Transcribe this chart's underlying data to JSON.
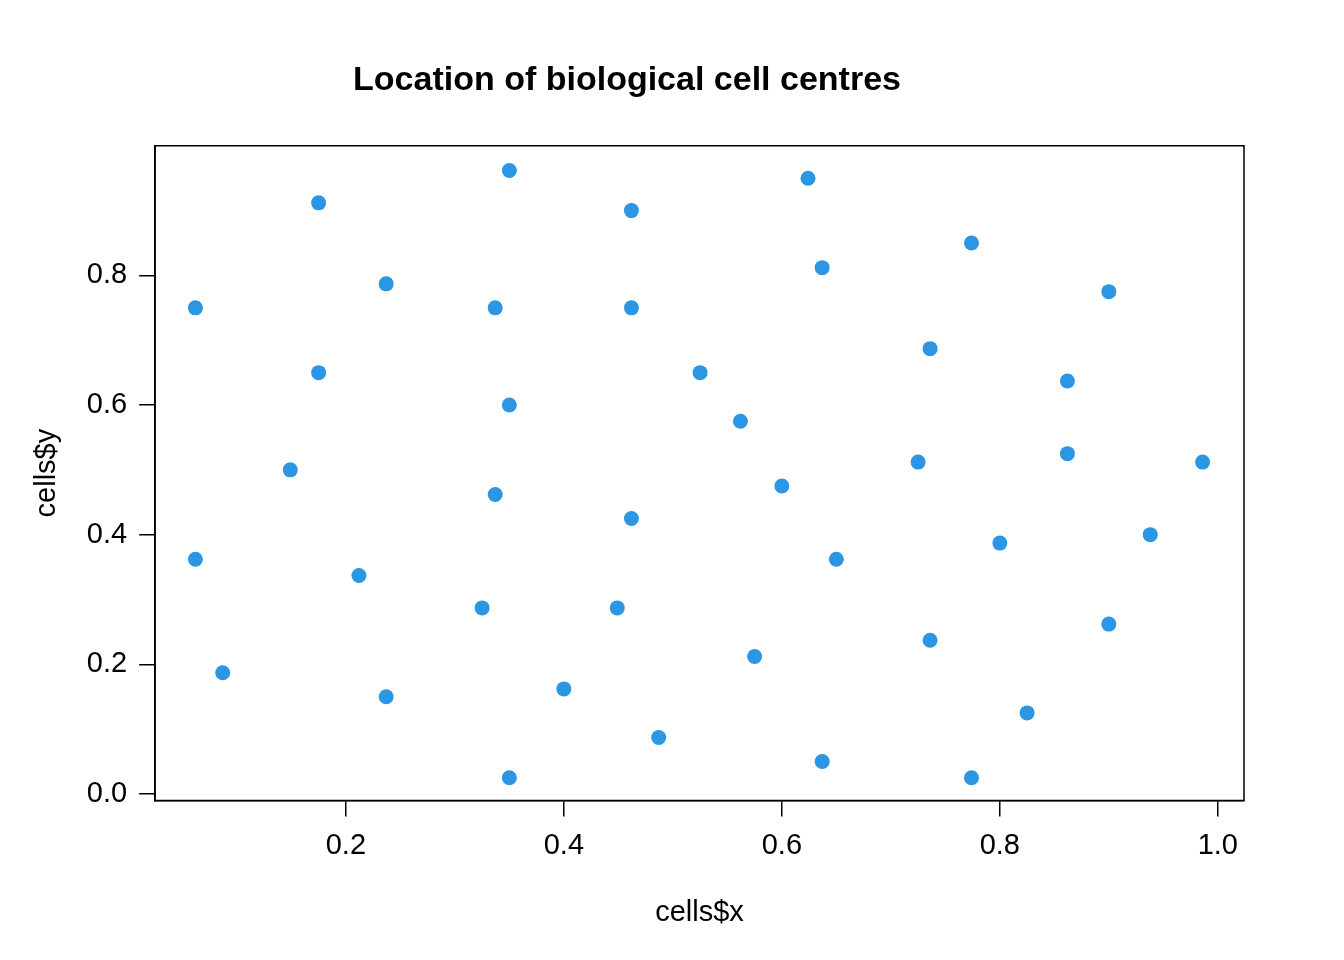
{
  "chart_data": {
    "type": "scatter",
    "title": "Location of biological cell centres",
    "xlabel": "cells$x",
    "ylabel": "cells$y",
    "x": [
      0.35,
      0.624,
      0.175,
      0.462,
      0.774,
      0.637,
      0.237,
      0.9,
      0.062,
      0.337,
      0.462,
      0.736,
      0.175,
      0.525,
      0.862,
      0.35,
      0.562,
      0.149,
      0.725,
      0.862,
      0.986,
      0.6,
      0.337,
      0.462,
      0.938,
      0.8,
      0.062,
      0.65,
      0.212,
      0.325,
      0.449,
      0.9,
      0.736,
      0.575,
      0.087,
      0.237,
      0.4,
      0.825,
      0.487,
      0.637,
      0.35,
      0.774
    ],
    "series": [
      {
        "color": "#2b96e3",
        "values": [
          0.962,
          0.95,
          0.912,
          0.9,
          0.85,
          0.812,
          0.787,
          0.775,
          0.75,
          0.75,
          0.75,
          0.687,
          0.65,
          0.65,
          0.637,
          0.6,
          0.575,
          0.5,
          0.512,
          0.525,
          0.512,
          0.475,
          0.462,
          0.425,
          0.4,
          0.387,
          0.362,
          0.362,
          0.337,
          0.287,
          0.287,
          0.262,
          0.237,
          0.212,
          0.187,
          0.15,
          0.162,
          0.125,
          0.087,
          0.05,
          0.025,
          0.025
        ]
      }
    ],
    "xlim": [
      0.025,
      1.024
    ],
    "ylim": [
      -0.01,
      1.0
    ],
    "xticks": [
      {
        "value": 0.2,
        "label": "0.2"
      },
      {
        "value": 0.4,
        "label": "0.4"
      },
      {
        "value": 0.6,
        "label": "0.6"
      },
      {
        "value": 0.8,
        "label": "0.8"
      },
      {
        "value": 1.0,
        "label": "1.0"
      }
    ],
    "yticks": [
      {
        "value": 0.0,
        "label": "0.0"
      },
      {
        "value": 0.2,
        "label": "0.2"
      },
      {
        "value": 0.4,
        "label": "0.4"
      },
      {
        "value": 0.6,
        "label": "0.6"
      },
      {
        "value": 0.8,
        "label": "0.8"
      }
    ],
    "grid": false,
    "legend": false,
    "marker": "circle"
  }
}
